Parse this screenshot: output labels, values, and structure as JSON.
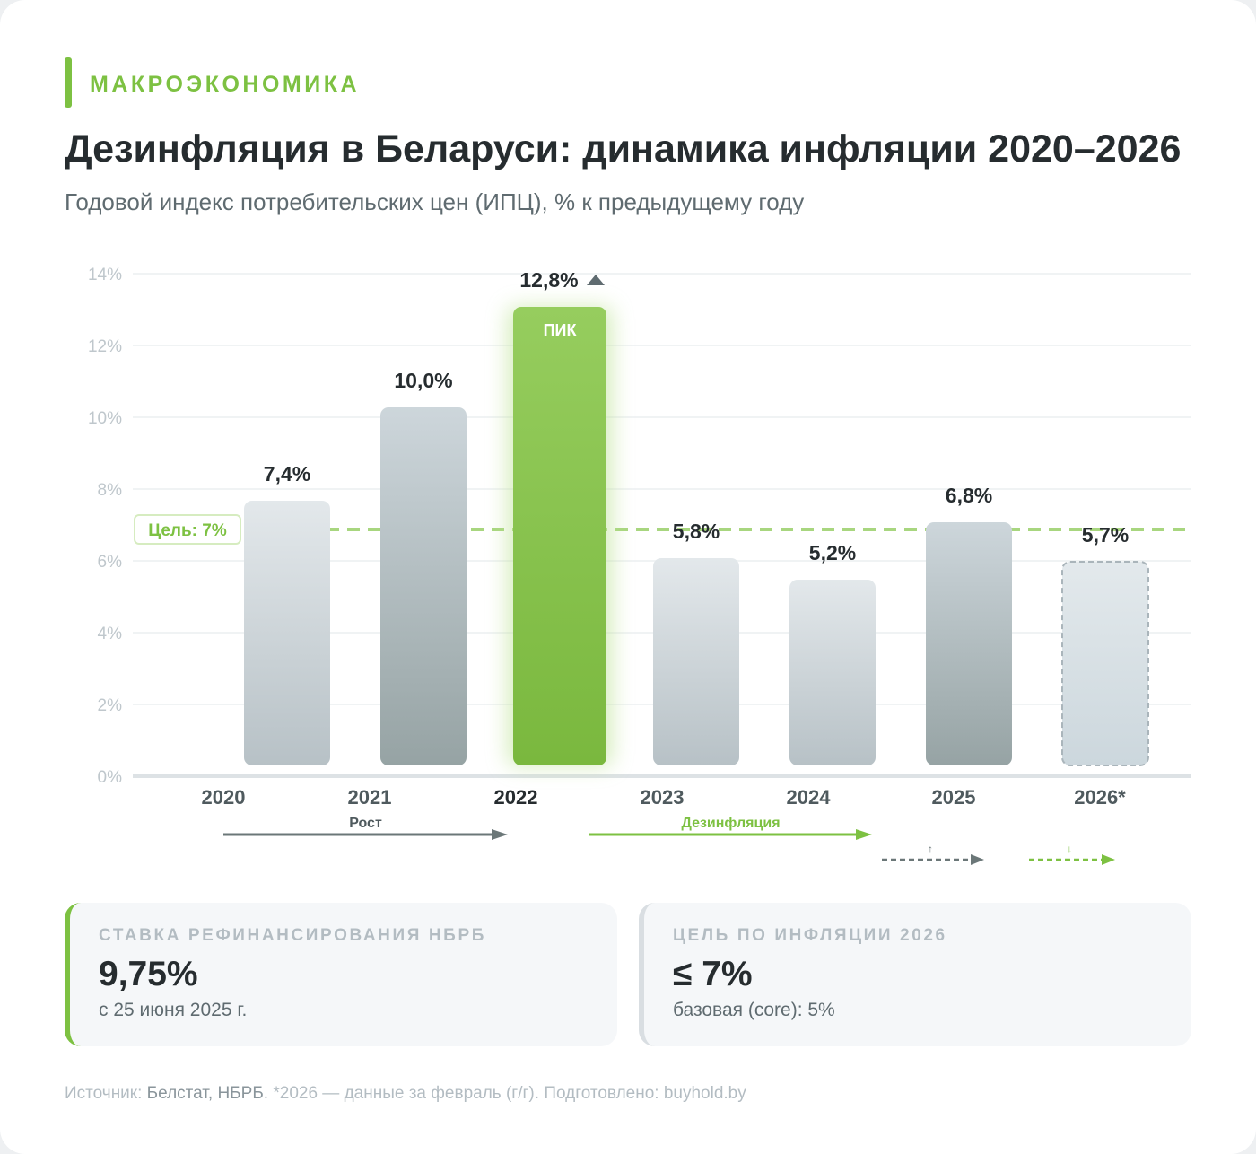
{
  "header": {
    "kicker": "МАКРОЭКОНОМИКА",
    "title": "Дезинфляция в Беларуси: динамика инфляции 2020–2026",
    "subtitle": "Годовой индекс потребительских цен (ИПЦ), % к предыдущему году"
  },
  "chart_data": {
    "type": "bar",
    "categories": [
      "2020",
      "2021",
      "2022",
      "2023",
      "2024",
      "2025",
      "2026*"
    ],
    "values": [
      7.4,
      10.0,
      12.8,
      5.8,
      5.2,
      6.8,
      5.7
    ],
    "value_labels": [
      "7,4%",
      "10,0%",
      "12,8%",
      "5,8%",
      "5,2%",
      "6,8%",
      "5,7%"
    ],
    "ylim": [
      0,
      14
    ],
    "yticks": [
      "0%",
      "2%",
      "4%",
      "6%",
      "8%",
      "10%",
      "12%",
      "14%"
    ],
    "grid": true,
    "highlight": {
      "category": "2022",
      "label": "ПИК",
      "color": "#7dc142"
    },
    "target": {
      "value": 7,
      "label": "Цель: 7%",
      "color": "#a8d67f"
    },
    "phases": [
      {
        "label": "Рост",
        "color": "#6b7778"
      },
      {
        "label": "Дезинфляция",
        "color": "#7dc142"
      }
    ],
    "trend_marks": [
      {
        "symbol": "↑",
        "color": "#6b7778"
      },
      {
        "symbol": "↓",
        "color": "#7dc142"
      }
    ],
    "colors": {
      "bar": "#b8c3c8",
      "bar_dark": "#97a4a6",
      "forecast": "#d7e0e5"
    }
  },
  "stats": [
    {
      "label": "СТАВКА РЕФИНАНСИРОВАНИЯ НБРБ",
      "value": "9,75%",
      "sub": "с 25 июня 2025 г."
    },
    {
      "label": "ЦЕЛЬ ПО ИНФЛЯЦИИ 2026",
      "value": "≤ 7%",
      "sub": "базовая (core): 5%"
    }
  ],
  "footer": {
    "prefix": "Источник: ",
    "source": "Белстат, НБРБ",
    "rest": ". *2026 — данные за февраль (г/г). Подготовлено: buyhold.by"
  }
}
